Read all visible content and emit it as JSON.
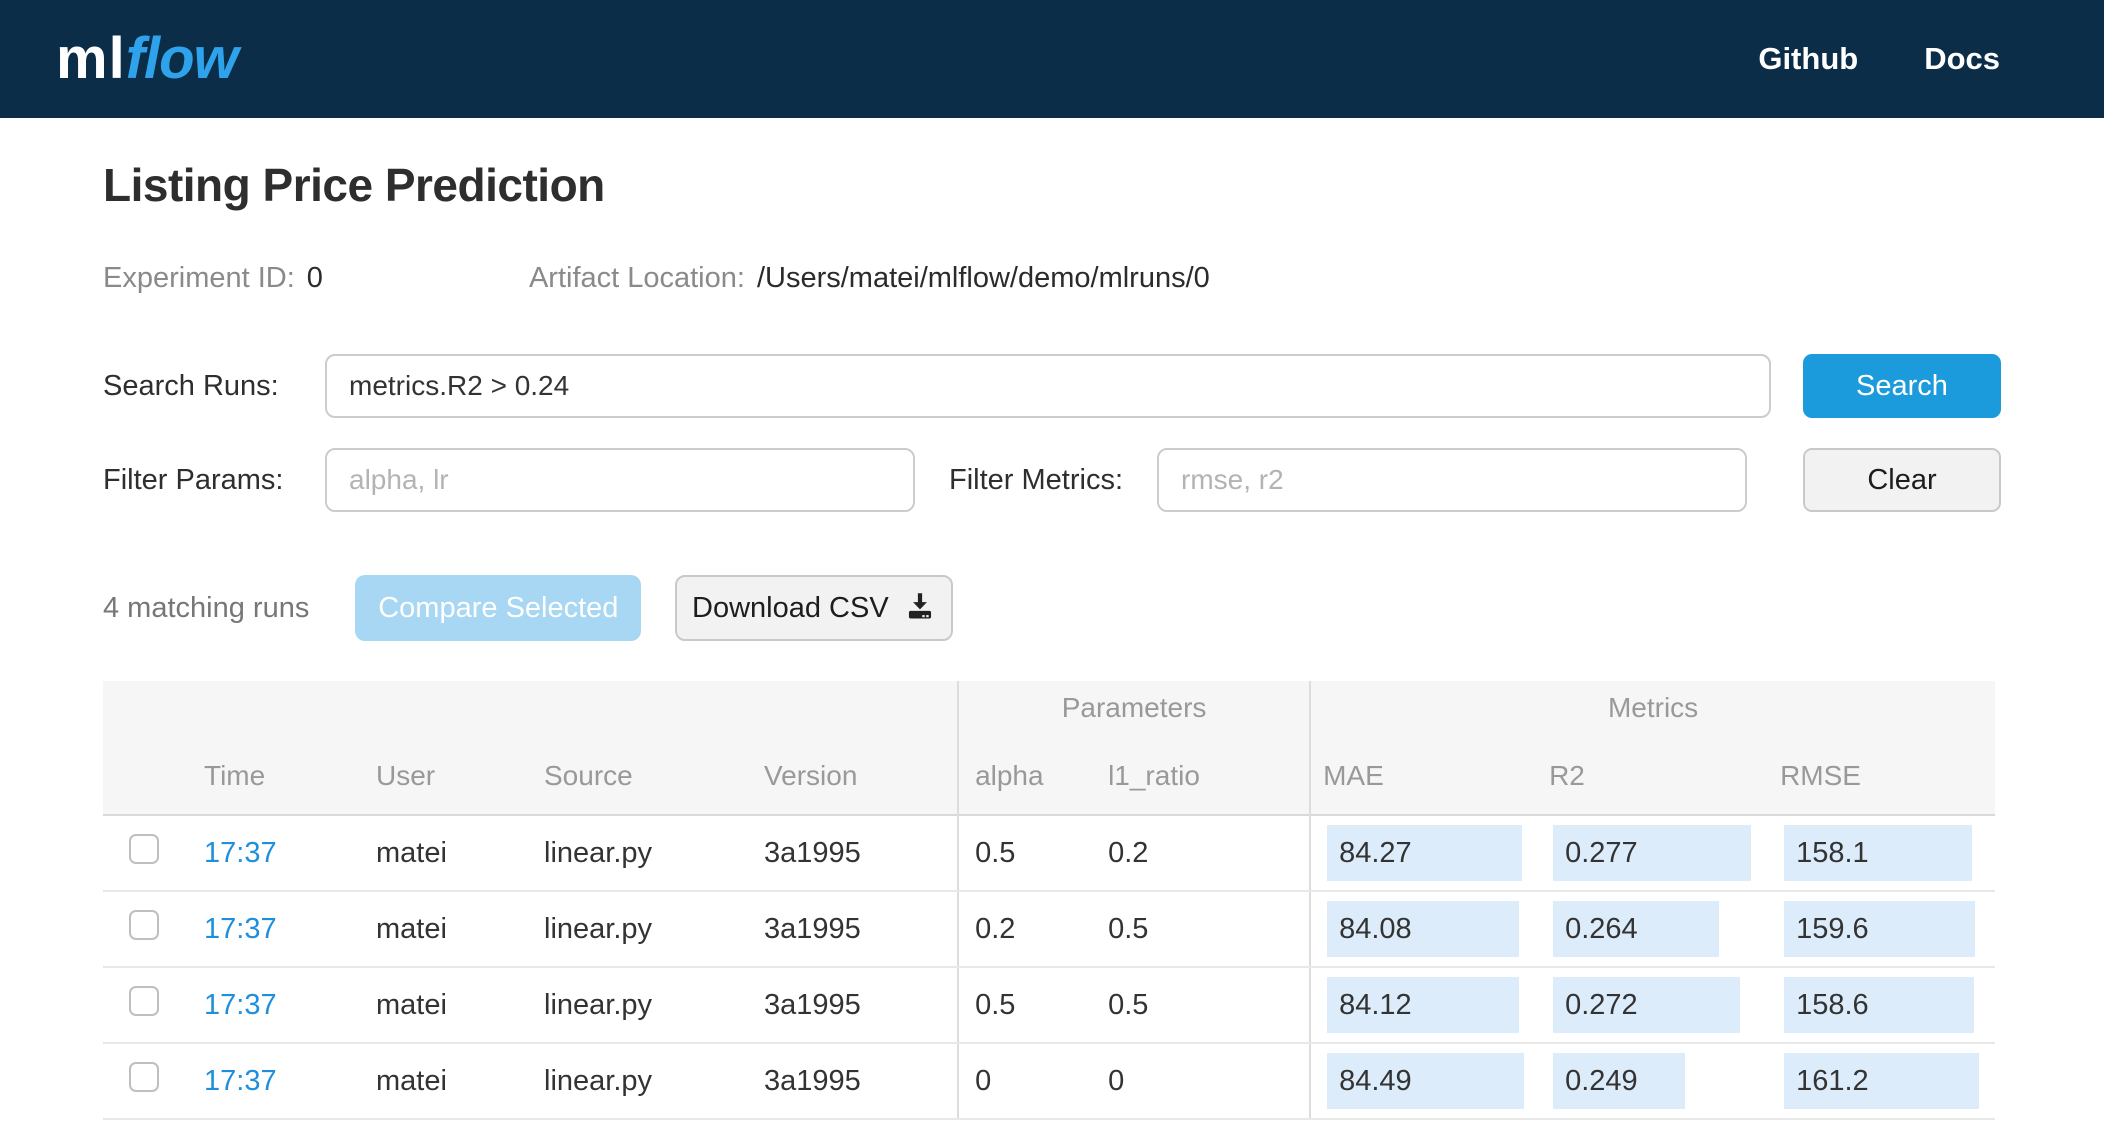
{
  "header": {
    "logo": {
      "ml": "ml",
      "flow": "flow"
    },
    "nav_github": "Github",
    "nav_docs": "Docs"
  },
  "page": {
    "title": "Listing Price Prediction",
    "experiment_id_label": "Experiment ID:",
    "experiment_id_value": "0",
    "artifact_location_label": "Artifact Location:",
    "artifact_location_value": "/Users/matei/mlflow/demo/mlruns/0"
  },
  "search": {
    "label": "Search Runs:",
    "query": "metrics.R2 > 0.24",
    "search_button": "Search"
  },
  "filters": {
    "params_label": "Filter Params:",
    "params_placeholder": "alpha, lr",
    "metrics_label": "Filter Metrics:",
    "metrics_placeholder": "rmse, r2",
    "clear_button": "Clear"
  },
  "actions": {
    "matching_runs_text": "4 matching runs",
    "compare_button": "Compare Selected",
    "download_button": "Download CSV"
  },
  "table": {
    "group_parameters": "Parameters",
    "group_metrics": "Metrics",
    "col_time": "Time",
    "col_user": "User",
    "col_source": "Source",
    "col_version": "Version",
    "col_alpha": "alpha",
    "col_l1_ratio": "l1_ratio",
    "col_mae": "MAE",
    "col_r2": "R2",
    "col_rmse": "RMSE",
    "runs": [
      {
        "time": "17:37",
        "user": "matei",
        "source": "linear.py",
        "version": "3a1995",
        "alpha": "0.5",
        "l1_ratio": "0.2",
        "mae": {
          "value": "84.27",
          "bar": 195
        },
        "r2": {
          "value": "0.277",
          "bar": 198
        },
        "rmse": {
          "value": "158.1",
          "bar": 188
        }
      },
      {
        "time": "17:37",
        "user": "matei",
        "source": "linear.py",
        "version": "3a1995",
        "alpha": "0.2",
        "l1_ratio": "0.5",
        "mae": {
          "value": "84.08",
          "bar": 192
        },
        "r2": {
          "value": "0.264",
          "bar": 166
        },
        "rmse": {
          "value": "159.6",
          "bar": 191
        }
      },
      {
        "time": "17:37",
        "user": "matei",
        "source": "linear.py",
        "version": "3a1995",
        "alpha": "0.5",
        "l1_ratio": "0.5",
        "mae": {
          "value": "84.12",
          "bar": 192
        },
        "r2": {
          "value": "0.272",
          "bar": 187
        },
        "rmse": {
          "value": "158.6",
          "bar": 190
        }
      },
      {
        "time": "17:37",
        "user": "matei",
        "source": "linear.py",
        "version": "3a1995",
        "alpha": "0",
        "l1_ratio": "0",
        "mae": {
          "value": "84.49",
          "bar": 197
        },
        "r2": {
          "value": "0.249",
          "bar": 132
        },
        "rmse": {
          "value": "161.2",
          "bar": 195
        }
      }
    ]
  },
  "colors": {
    "topbar_navy": "#0c2d48",
    "logo_blue": "#2ea3ec",
    "primary_blue": "#1b9bdc",
    "link_blue": "#1e8fdd",
    "metric_highlight": "#dcecfa",
    "disabled_compare_blue": "#a7d7f3"
  }
}
